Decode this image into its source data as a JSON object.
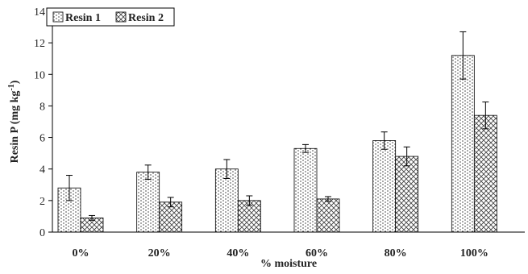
{
  "chart_data": {
    "type": "bar",
    "xlabel": "% moisture",
    "ylabel_main": "Resin P (mg kg",
    "ylabel_sup": "-1",
    "ylabel_end": ")",
    "categories": [
      "0%",
      "20%",
      "40%",
      "60%",
      "80%",
      "100%"
    ],
    "yticks": [
      "0",
      "2",
      "4",
      "6",
      "8",
      "10",
      "12",
      "14"
    ],
    "ylim": [
      0,
      14
    ],
    "grid": false,
    "legend_position": "top-left",
    "series": [
      {
        "name": "Resin 1",
        "values": [
          2.8,
          3.8,
          4.0,
          5.3,
          5.8,
          11.2
        ],
        "errors": [
          0.8,
          0.45,
          0.6,
          0.25,
          0.55,
          1.5
        ],
        "pattern": "dots"
      },
      {
        "name": "Resin 2",
        "values": [
          0.9,
          1.9,
          2.0,
          2.1,
          4.8,
          7.4
        ],
        "errors": [
          0.15,
          0.3,
          0.3,
          0.15,
          0.6,
          0.85
        ],
        "pattern": "crosshatch"
      }
    ]
  }
}
